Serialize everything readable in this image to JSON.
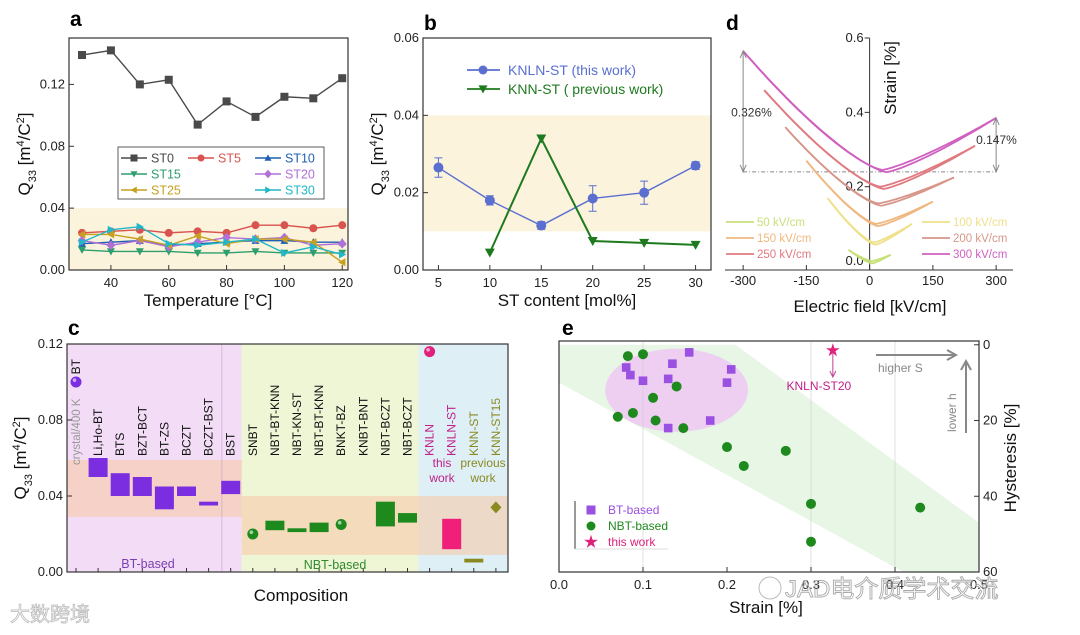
{
  "watermarks": [
    "大数跨境",
    "JAD电介质学术交流"
  ],
  "chart_data": [
    {
      "panel": "a",
      "type": "line",
      "xlabel": "Temperature [°C]",
      "ylabel_parts": [
        "Q",
        "33",
        " [m",
        "4",
        "/C",
        "2",
        "]"
      ],
      "xlim": [
        25.5,
        122
      ],
      "ylim": [
        0,
        0.15
      ],
      "xticks": [
        {
          "v": 40,
          "t": "40"
        },
        {
          "v": 60,
          "t": "60"
        },
        {
          "v": 80,
          "t": "80"
        },
        {
          "v": 100,
          "t": "100"
        },
        {
          "v": 120,
          "t": "120"
        }
      ],
      "yticks": [
        {
          "v": 0,
          "t": "0.00"
        },
        {
          "v": 0.04,
          "t": "0.04"
        },
        {
          "v": 0.08,
          "t": "0.08"
        },
        {
          "v": 0.12,
          "t": "0.12"
        }
      ],
      "band": [
        0,
        0.04
      ],
      "legend_position": "center",
      "x": [
        30,
        40,
        50,
        60,
        70,
        80,
        90,
        100,
        110,
        120
      ],
      "series": [
        {
          "name": "ST0",
          "color": "#4a4a4a",
          "marker": "square",
          "values": [
            0.139,
            0.142,
            0.12,
            0.123,
            0.094,
            0.109,
            0.099,
            0.112,
            0.111,
            0.124
          ]
        },
        {
          "name": "ST5",
          "color": "#d9534f",
          "marker": "circle",
          "values": [
            0.024,
            0.025,
            0.026,
            0.024,
            0.025,
            0.024,
            0.029,
            0.029,
            0.027,
            0.029
          ]
        },
        {
          "name": "ST10",
          "color": "#1f5fb0",
          "marker": "triangle-up",
          "values": [
            0.017,
            0.018,
            0.019,
            0.016,
            0.017,
            0.018,
            0.019,
            0.019,
            0.018,
            0.018
          ]
        },
        {
          "name": "ST15",
          "color": "#2e9e6e",
          "marker": "triangle-down",
          "values": [
            0.013,
            0.012,
            0.012,
            0.012,
            0.011,
            0.011,
            0.012,
            0.011,
            0.011,
            0.011
          ]
        },
        {
          "name": "ST20",
          "color": "#b070d8",
          "marker": "diamond",
          "values": [
            0.019,
            0.016,
            0.019,
            0.015,
            0.018,
            0.021,
            0.02,
            0.021,
            0.016,
            0.017
          ]
        },
        {
          "name": "ST25",
          "color": "#c8a020",
          "marker": "triangle-left",
          "values": [
            0.023,
            0.023,
            0.02,
            0.016,
            0.022,
            0.017,
            0.02,
            0.02,
            0.018,
            0.005
          ]
        },
        {
          "name": "ST30",
          "color": "#20b8c8",
          "marker": "triangle-right",
          "values": [
            0.018,
            0.026,
            0.028,
            0.017,
            0.016,
            0.018,
            0.02,
            0.011,
            0.015,
            0.01
          ]
        }
      ]
    },
    {
      "panel": "b",
      "type": "line",
      "xlabel": "ST content [mol%]",
      "ylabel_parts": [
        "Q",
        "33",
        " [m",
        "4",
        "/C",
        "2",
        "]"
      ],
      "xlim": [
        3.5,
        31.5
      ],
      "ylim": [
        0,
        0.06
      ],
      "xticks": [
        {
          "v": 5,
          "t": "5"
        },
        {
          "v": 10,
          "t": "10"
        },
        {
          "v": 15,
          "t": "15"
        },
        {
          "v": 20,
          "t": "20"
        },
        {
          "v": 25,
          "t": "25"
        },
        {
          "v": 30,
          "t": "30"
        }
      ],
      "yticks": [
        {
          "v": 0,
          "t": "0.00"
        },
        {
          "v": 0.02,
          "t": "0.02"
        },
        {
          "v": 0.04,
          "t": "0.04"
        },
        {
          "v": 0.06,
          "t": "0.06"
        }
      ],
      "band": [
        0.01,
        0.04
      ],
      "legend_position": "top",
      "series": [
        {
          "name": "KNLN-ST (this work)",
          "color": "#5a6fd0",
          "marker": "circle",
          "x": [
            5,
            10,
            15,
            20,
            25,
            30
          ],
          "values": [
            0.0265,
            0.018,
            0.0115,
            0.0185,
            0.02,
            0.027
          ],
          "errors": [
            0.0025,
            0.0012,
            0.001,
            0.0033,
            0.003,
            0.001
          ]
        },
        {
          "name": "KNN-ST ( previous work)",
          "color": "#1e7a1e",
          "marker": "triangle-down",
          "x": [
            10,
            15,
            20,
            25,
            30
          ],
          "values": [
            0.0045,
            0.034,
            0.0075,
            0.007,
            0.0065
          ]
        }
      ]
    },
    {
      "panel": "d",
      "type": "line",
      "xlabel": "Electric field [kV/cm]",
      "ylabel": "Strain [%]",
      "xlim": [
        -343,
        340
      ],
      "ylim": [
        -0.024,
        0.6
      ],
      "xticks": [
        {
          "v": -300,
          "t": "-300"
        },
        {
          "v": -150,
          "t": "-150"
        },
        {
          "v": 0,
          "t": "0"
        },
        {
          "v": 150,
          "t": "150"
        },
        {
          "v": 300,
          "t": "300"
        }
      ],
      "yticks": [
        {
          "v": 0,
          "t": "0.0"
        },
        {
          "v": 0.2,
          "t": "0.2"
        },
        {
          "v": 0.4,
          "t": "0.4"
        },
        {
          "v": 0.6,
          "t": "0.6"
        }
      ],
      "annotations": [
        {
          "text": "0.326%",
          "at_strain": 0.4
        },
        {
          "text": "0.147%",
          "at_strain": 0.31
        }
      ],
      "reference_strain": 0.24,
      "series": [
        {
          "name": "50 kV/cm",
          "color": "#c8e07a",
          "emax": 50,
          "s_neg": 0.03,
          "s_pos": 0.017,
          "s_min": 0.0
        },
        {
          "name": "100 kV/cm",
          "color": "#efe08a",
          "emax": 100,
          "s_neg": 0.17,
          "s_pos": 0.1,
          "s_min": 0.05
        },
        {
          "name": "150 kV/cm",
          "color": "#f0b880",
          "emax": 150,
          "s_neg": 0.27,
          "s_pos": 0.16,
          "s_min": 0.1
        },
        {
          "name": "200 kV/cm",
          "color": "#d8968a",
          "emax": 200,
          "s_neg": 0.36,
          "s_pos": 0.225,
          "s_min": 0.155
        },
        {
          "name": "250 kV/cm",
          "color": "#e07a80",
          "emax": 250,
          "s_neg": 0.46,
          "s_pos": 0.31,
          "s_min": 0.2
        },
        {
          "name": "300 kV/cm",
          "color": "#d060c0",
          "emax": 300,
          "s_neg": 0.565,
          "s_pos": 0.385,
          "s_min": 0.245
        }
      ]
    },
    {
      "panel": "c",
      "type": "bar",
      "xlabel": "Composition",
      "ylabel_parts": [
        "Q",
        "33",
        " [m",
        "4",
        "/C",
        "2",
        "]"
      ],
      "ylim": [
        0,
        0.12
      ],
      "yticks": [
        {
          "v": 0,
          "t": "0.00"
        },
        {
          "v": 0.04,
          "t": "0.04"
        },
        {
          "v": 0.08,
          "t": "0.08"
        },
        {
          "v": 0.12,
          "t": "0.12"
        }
      ],
      "groups": [
        {
          "name": "BT-based",
          "color": "#7a3fb0"
        },
        {
          "name": "NBT-based",
          "color": "#2e8b2e"
        }
      ],
      "group_notes": [
        {
          "text": [
            "this",
            "work"
          ],
          "color": "#c0208a"
        },
        {
          "text": [
            "previous",
            "work"
          ],
          "color": "#8a8a20"
        }
      ],
      "bands": [
        {
          "range": [
            0.029,
            0.059
          ],
          "from": 0,
          "to": 7.5
        },
        {
          "range": [
            0.009,
            0.04
          ],
          "from": 7.5,
          "to": 19.5
        }
      ],
      "categories": [
        {
          "label": "BT",
          "sub": "crystal/400 K",
          "kind": "sphere",
          "value": 0.1,
          "color": "#7a2ee0"
        },
        {
          "label": "Li,Ho-BT",
          "kind": "range",
          "low": 0.05,
          "high": 0.06,
          "color": "#7a2ee0"
        },
        {
          "label": "BTS",
          "kind": "range",
          "low": 0.04,
          "high": 0.052,
          "color": "#7a2ee0"
        },
        {
          "label": "BZT-BCT",
          "kind": "range",
          "low": 0.04,
          "high": 0.05,
          "color": "#7a2ee0"
        },
        {
          "label": "BT-ZS",
          "kind": "range",
          "low": 0.033,
          "high": 0.045,
          "color": "#7a2ee0"
        },
        {
          "label": "BCZT",
          "kind": "range",
          "low": 0.04,
          "high": 0.045,
          "color": "#7a2ee0"
        },
        {
          "label": "BCZT-BST",
          "kind": "range",
          "low": 0.035,
          "high": 0.037,
          "color": "#7a2ee0"
        },
        {
          "label": "BST",
          "kind": "range",
          "low": 0.041,
          "high": 0.048,
          "color": "#7a2ee0"
        },
        {
          "label": "SNBT",
          "kind": "sphere",
          "value": 0.02,
          "color": "#1e8a1e"
        },
        {
          "label": "NBT-BT-KNN",
          "kind": "range",
          "low": 0.022,
          "high": 0.027,
          "color": "#1e8a1e"
        },
        {
          "label": "NBT-KN-ST",
          "kind": "range",
          "low": 0.021,
          "high": 0.023,
          "color": "#1e8a1e"
        },
        {
          "label": "NBT-BT-KNN",
          "kind": "range",
          "low": 0.021,
          "high": 0.026,
          "color": "#1e8a1e"
        },
        {
          "label": "BNKT-BZ",
          "kind": "sphere",
          "value": 0.025,
          "color": "#1e8a1e"
        },
        {
          "label": "KNBT-BNT",
          "kind": "none"
        },
        {
          "label": "NBT-BCZT",
          "kind": "range",
          "low": 0.024,
          "high": 0.037,
          "color": "#1e8a1e"
        },
        {
          "label": "NBT-BCZT",
          "kind": "range",
          "low": 0.026,
          "high": 0.031,
          "color": "#1e8a1e"
        },
        {
          "label": "KNLN",
          "kind": "sphere",
          "value": 0.116,
          "color": "#e0207a",
          "label_color": "#c0208a"
        },
        {
          "label": "KNLN-ST",
          "kind": "range",
          "low": 0.012,
          "high": 0.028,
          "color": "#f0207a",
          "label_color": "#c0208a"
        },
        {
          "label": "KNN-ST",
          "kind": "range",
          "low": 0.005,
          "high": 0.007,
          "color": "#8a8a20",
          "label_color": "#8a8a20"
        },
        {
          "label": "KNN-ST15",
          "kind": "diamond",
          "value": 0.034,
          "color": "#8a8a20",
          "label_color": "#8a8a20"
        }
      ]
    },
    {
      "panel": "e",
      "type": "scatter",
      "xlabel": "Strain [%]",
      "ylabel": "Hysteresis [%]",
      "xlim": [
        0,
        0.5
      ],
      "ylim": [
        -1,
        60
      ],
      "y_reversed": true,
      "y_axis_side": "right",
      "xticks": [
        {
          "v": 0,
          "t": "0.0"
        },
        {
          "v": 0.1,
          "t": "0.1"
        },
        {
          "v": 0.2,
          "t": "0.2"
        },
        {
          "v": 0.3,
          "t": "0.3"
        },
        {
          "v": 0.4,
          "t": "0.4"
        },
        {
          "v": 0.5,
          "t": "0.5"
        }
      ],
      "yticks": [
        {
          "v": 0,
          "t": "0"
        },
        {
          "v": 20,
          "t": "20"
        },
        {
          "v": 40,
          "t": "40"
        },
        {
          "v": 60,
          "t": "60"
        }
      ],
      "legend_position": "bottom-left",
      "annotations": [
        {
          "text": "higher S"
        },
        {
          "text": "lower h"
        },
        {
          "text": "KNLN-ST20"
        }
      ],
      "series": [
        {
          "name": "BT-based",
          "color": "#9a50e0",
          "marker": "square",
          "points": [
            [
              0.08,
              6
            ],
            [
              0.085,
              8
            ],
            [
              0.1,
              9.5
            ],
            [
              0.13,
              9
            ],
            [
              0.135,
              5
            ],
            [
              0.155,
              2
            ],
            [
              0.205,
              6.5
            ],
            [
              0.2,
              10
            ],
            [
              0.18,
              20
            ],
            [
              0.13,
              22
            ]
          ]
        },
        {
          "name": "NBT-based",
          "color": "#1e8a1e",
          "marker": "circle",
          "points": [
            [
              0.082,
              3
            ],
            [
              0.1,
              2.5
            ],
            [
              0.14,
              11
            ],
            [
              0.112,
              14
            ],
            [
              0.07,
              19
            ],
            [
              0.088,
              18
            ],
            [
              0.115,
              20
            ],
            [
              0.148,
              22
            ],
            [
              0.2,
              27
            ],
            [
              0.27,
              28
            ],
            [
              0.22,
              32
            ],
            [
              0.3,
              42
            ],
            [
              0.43,
              43
            ],
            [
              0.3,
              52
            ]
          ]
        },
        {
          "name": "this work",
          "color": "#e0207a",
          "marker": "star",
          "points": [
            [
              0.326,
              1.5
            ]
          ]
        }
      ]
    }
  ]
}
